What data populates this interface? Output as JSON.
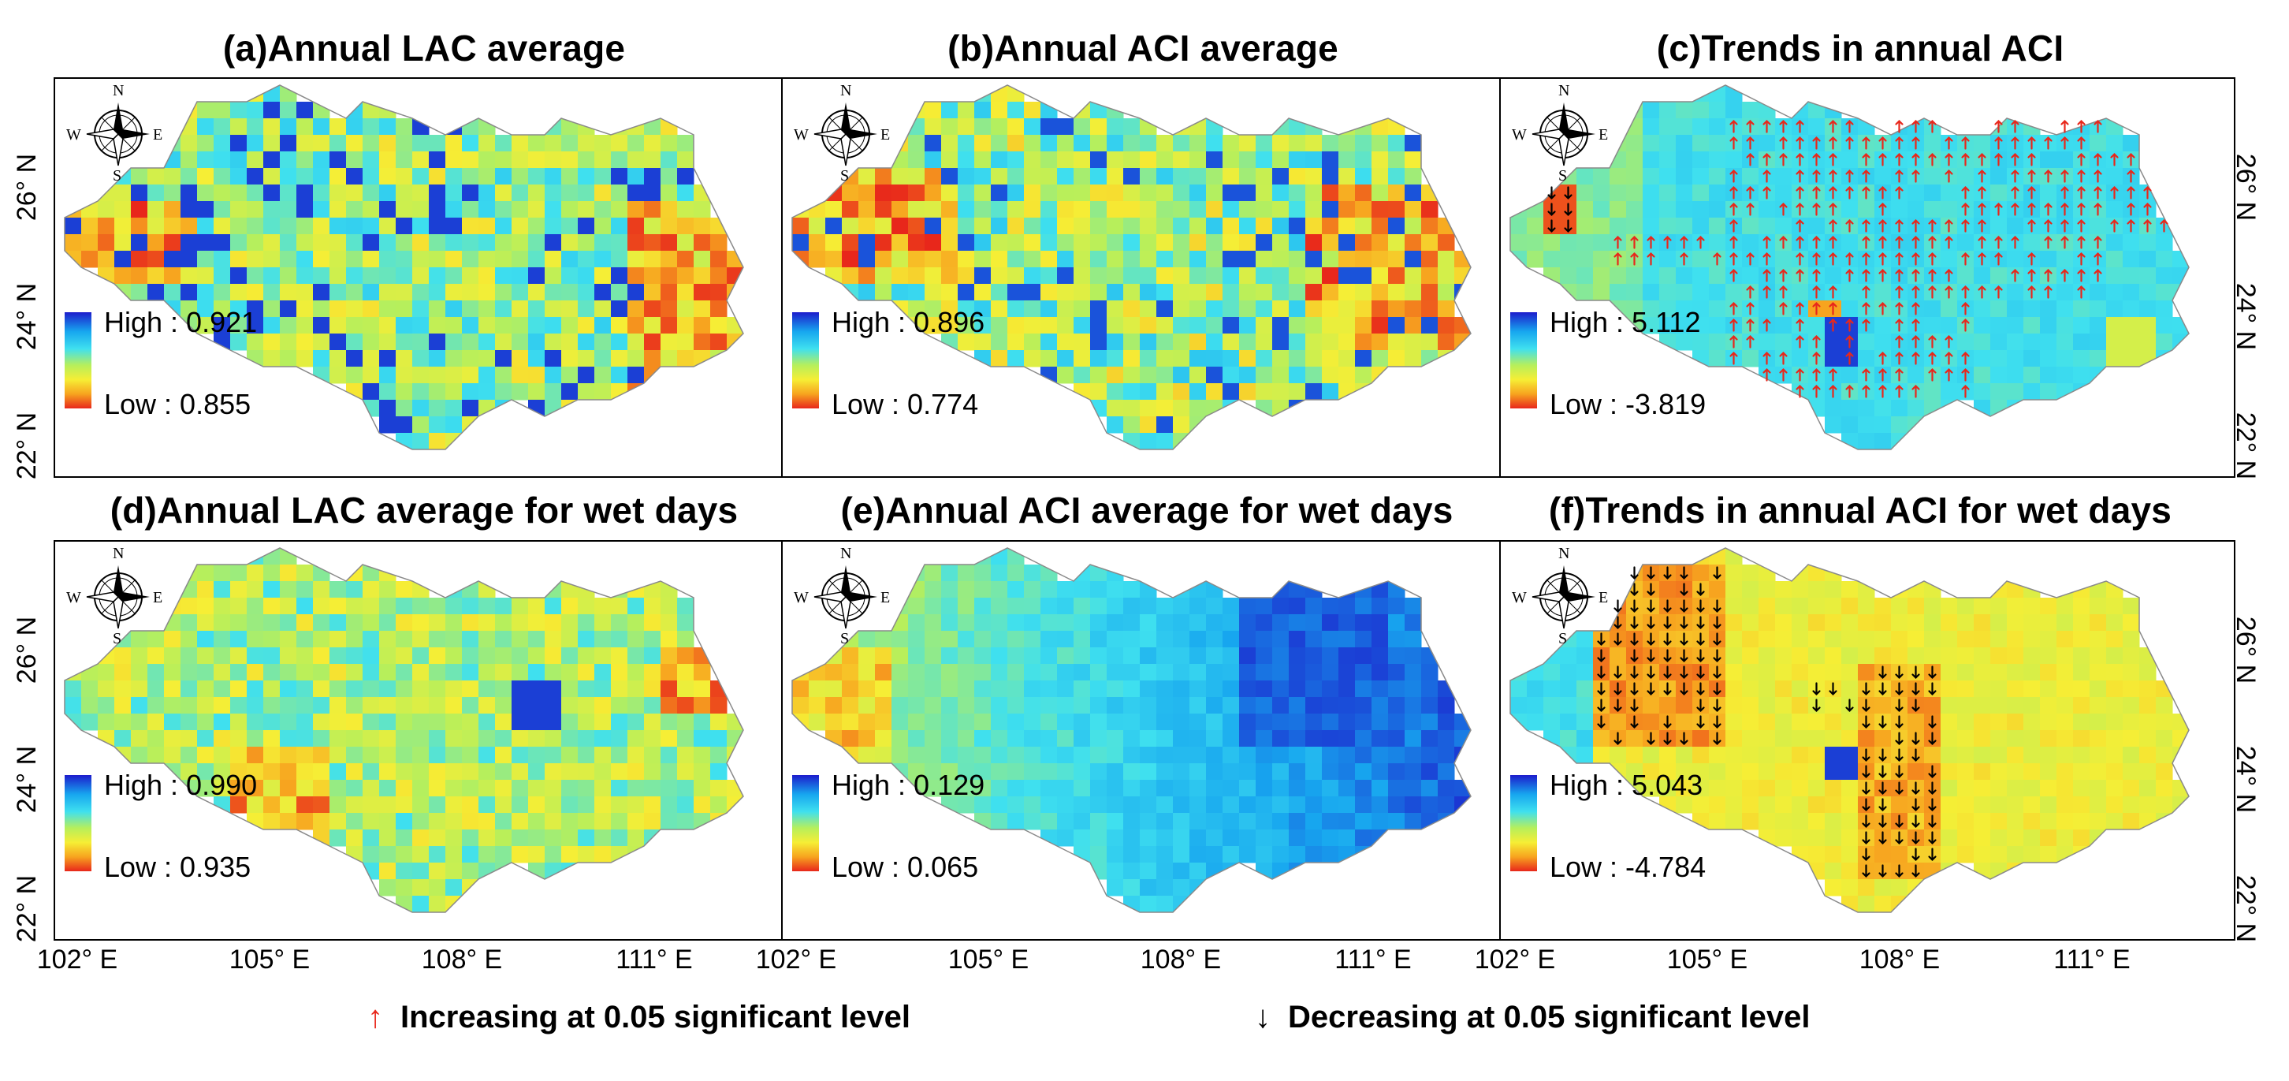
{
  "panels": [
    {
      "id": "a",
      "title": "(a)Annual LAC average",
      "legend_high": "High : 0.921",
      "legend_low": "Low : 0.855",
      "scheme": "lac",
      "trend": "none"
    },
    {
      "id": "b",
      "title": "(b)Annual ACI average",
      "legend_high": "High : 0.896",
      "legend_low": "Low : 0.774",
      "scheme": "aci",
      "trend": "none"
    },
    {
      "id": "c",
      "title": "(c)Trends in annual ACI",
      "legend_high": "High : 5.112",
      "legend_low": "Low : -3.819",
      "scheme": "trend_c",
      "trend": "increasing"
    },
    {
      "id": "d",
      "title": "(d)Annual LAC average for wet days",
      "legend_high": "High : 0.990",
      "legend_low": "Low : 0.935",
      "scheme": "lac_wet",
      "trend": "none"
    },
    {
      "id": "e",
      "title": "(e)Annual ACI average for wet days",
      "legend_high": "High : 0.129",
      "legend_low": "Low : 0.065",
      "scheme": "aci_wet",
      "trend": "none"
    },
    {
      "id": "f",
      "title": "(f)Trends in annual ACI for wet days",
      "legend_high": "High : 5.043",
      "legend_low": "Low : -4.784",
      "scheme": "trend_f",
      "trend": "decreasing"
    }
  ],
  "compass": {
    "n": "N",
    "s": "S",
    "e": "E",
    "w": "W"
  },
  "lat_labels": [
    "26° N",
    "24° N",
    "22° N"
  ],
  "lon_labels": [
    "102° E",
    "105° E",
    "108° E",
    "111° E"
  ],
  "legend_bottom": {
    "increasing": {
      "symbol": "↑",
      "text": "Increasing at 0.05 significant level",
      "color": "#e8271b"
    },
    "decreasing": {
      "symbol": "↓",
      "text": "Decreasing at 0.05 significant level",
      "color": "#000000"
    }
  },
  "colors": {
    "high": "#1c1ccc",
    "low": "#e8271b",
    "frame": "#000000"
  }
}
